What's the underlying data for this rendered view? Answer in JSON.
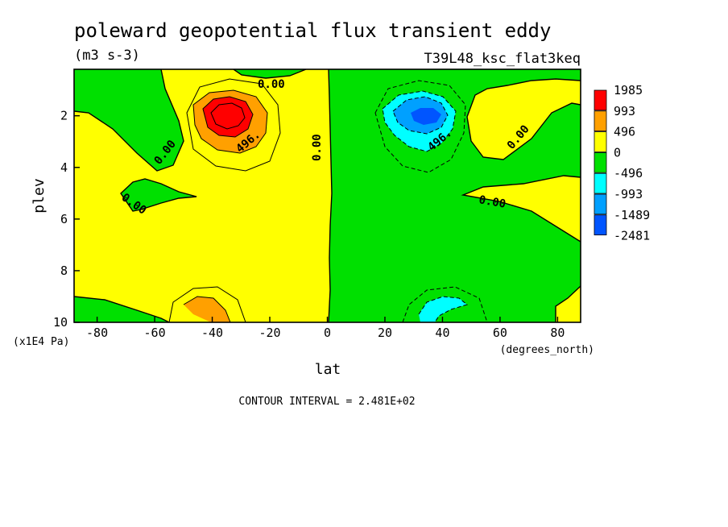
{
  "chart_data": {
    "type": "contour",
    "title": "poleward geopotential flux transient eddy",
    "units": "(m3 s-3)",
    "experiment": "T39L48_ksc_flat3keq",
    "xlabel": "lat",
    "ylabel": "plev",
    "x_units": "(degrees_north)",
    "y_units": "(x1E4 Pa)",
    "xlim": [
      -88,
      88
    ],
    "ylim": [
      10,
      0.2
    ],
    "x_ticks": [
      -80,
      -60,
      -40,
      -20,
      0,
      20,
      40,
      60,
      80
    ],
    "y_ticks": [
      2,
      4,
      6,
      8,
      10
    ],
    "contour_interval_text": "CONTOUR INTERVAL = 2.481E+02",
    "contour_labels": [
      "0.00",
      "496."
    ],
    "legend": {
      "placement": "right",
      "labels": [
        "1985",
        "993",
        "496",
        "0",
        "-496",
        "-993",
        "-1489",
        "-2481"
      ],
      "colors": [
        "#ff0000",
        "#ffa000",
        "#ffff00",
        "#00e000",
        "#00ffff",
        "#00a0ff",
        "#0055ff"
      ]
    },
    "features": [
      {
        "name": "southern-maximum",
        "lat": -35,
        "plev": 2.0,
        "value": 1985
      },
      {
        "name": "northern-minimum",
        "lat": 35,
        "plev": 2.0,
        "value": -2481
      },
      {
        "name": "southern-lower-maximum",
        "lat": -40,
        "plev": 9.6,
        "value": 496
      },
      {
        "name": "northern-lower-minimum",
        "lat": 35,
        "plev": 9.6,
        "value": -496
      }
    ]
  }
}
